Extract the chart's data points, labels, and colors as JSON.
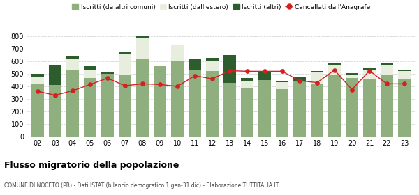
{
  "years": [
    "02",
    "03",
    "04",
    "05",
    "06",
    "07",
    "08",
    "09",
    "10",
    "11",
    "12",
    "13",
    "14",
    "15",
    "16",
    "17",
    "18",
    "19",
    "20",
    "21",
    "22",
    "23"
  ],
  "iscritti_comuni": [
    420,
    410,
    530,
    465,
    500,
    490,
    620,
    560,
    600,
    530,
    520,
    430,
    390,
    450,
    380,
    445,
    420,
    490,
    465,
    460,
    490,
    455
  ],
  "iscritti_estero": [
    55,
    0,
    90,
    65,
    0,
    170,
    170,
    0,
    130,
    0,
    80,
    0,
    55,
    0,
    55,
    0,
    90,
    80,
    30,
    75,
    80,
    65
  ],
  "iscritti_altri": [
    25,
    155,
    25,
    30,
    10,
    20,
    10,
    0,
    0,
    90,
    30,
    220,
    20,
    65,
    10,
    35,
    15,
    15,
    10,
    15,
    15,
    10
  ],
  "cancellati": [
    360,
    330,
    365,
    415,
    465,
    405,
    420,
    415,
    400,
    485,
    460,
    525,
    520,
    520,
    520,
    445,
    430,
    530,
    375,
    525,
    420,
    420
  ],
  "iscritti_comuni_color": "#8faf7e",
  "iscritti_estero_color": "#e8eedd",
  "iscritti_altri_color": "#2d5c2d",
  "cancellati_color": "#d42020",
  "title": "Flusso migratorio della popolazione",
  "subtitle": "COMUNE DI NOCETO (PR) - Dati ISTAT (bilancio demografico 1 gen-31 dic) - Elaborazione TUTTITALIA.IT",
  "legend_labels": [
    "Iscritti (da altri comuni)",
    "Iscritti (dall'estero)",
    "Iscritti (altri)",
    "Cancellati dall'Anagrafe"
  ],
  "ylim": [
    0,
    840
  ],
  "yticks": [
    0,
    100,
    200,
    300,
    400,
    500,
    600,
    700,
    800
  ],
  "bg_color": "#ffffff",
  "grid_color": "#cccccc"
}
